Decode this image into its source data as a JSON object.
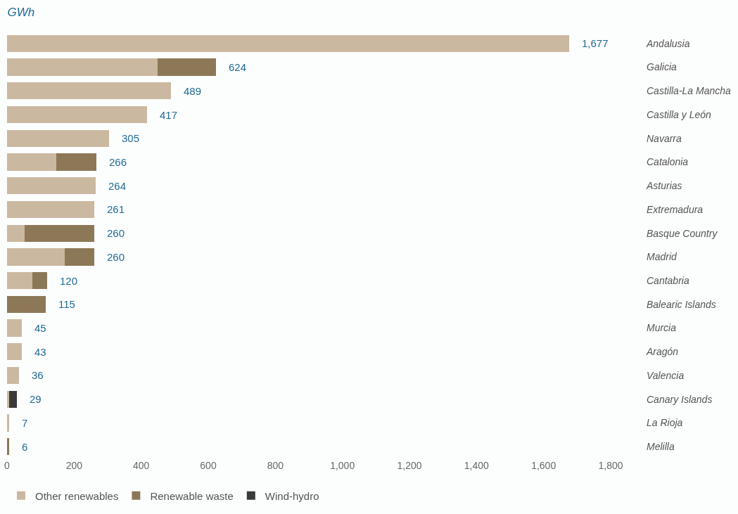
{
  "chart_data": {
    "type": "bar",
    "orientation": "horizontal",
    "stacked": true,
    "title": "GWh",
    "categories": [
      "Andalusia",
      "Galicia",
      "Castilla-La Mancha",
      "Castilla y León",
      "Navarra",
      "Catalonia",
      "Asturias",
      "Extremadura",
      "Basque Country",
      "Madrid",
      "Cantabria",
      "Balearic Islands",
      "Murcia",
      "Aragón",
      "Valencia",
      "Canary Islands",
      "La Rioja",
      "Melilla"
    ],
    "series": [
      {
        "name": "Other renewables",
        "color": "#cbb8a0",
        "values": [
          1677,
          449,
          489,
          417,
          305,
          147,
          264,
          261,
          52,
          172,
          75,
          0,
          45,
          43,
          36,
          6,
          7,
          0
        ]
      },
      {
        "name": "Renewable waste",
        "color": "#8c7857",
        "values": [
          0,
          175,
          0,
          0,
          0,
          119,
          0,
          0,
          208,
          88,
          45,
          115,
          0,
          0,
          0,
          0,
          0,
          6
        ]
      },
      {
        "name": "Wind-hydro",
        "color": "#3a3a3a",
        "values": [
          0,
          0,
          0,
          0,
          0,
          0,
          0,
          0,
          0,
          0,
          0,
          0,
          0,
          0,
          0,
          23,
          0,
          0
        ]
      }
    ],
    "totals": [
      "1,677",
      "624",
      "489",
      "417",
      "305",
      "266",
      "264",
      "261",
      "260",
      "260",
      "120",
      "115",
      "45",
      "43",
      "36",
      "29",
      "7",
      "6"
    ],
    "xlim": [
      0,
      1800
    ],
    "xticks": [
      0,
      {
        "value": 200,
        "label": "200"
      },
      {
        "value": 400,
        "label": "400"
      },
      {
        "value": 600,
        "label": "600"
      },
      {
        "value": 800,
        "label": "800"
      },
      {
        "value": 1000,
        "label": "1,000"
      },
      {
        "value": 1200,
        "label": "1,200"
      },
      {
        "value": 1400,
        "label": "1,400"
      },
      {
        "value": 1600,
        "label": "1,600"
      },
      {
        "value": 1800,
        "label": "1,800"
      }
    ],
    "legend": "bottom left",
    "grid": false
  }
}
